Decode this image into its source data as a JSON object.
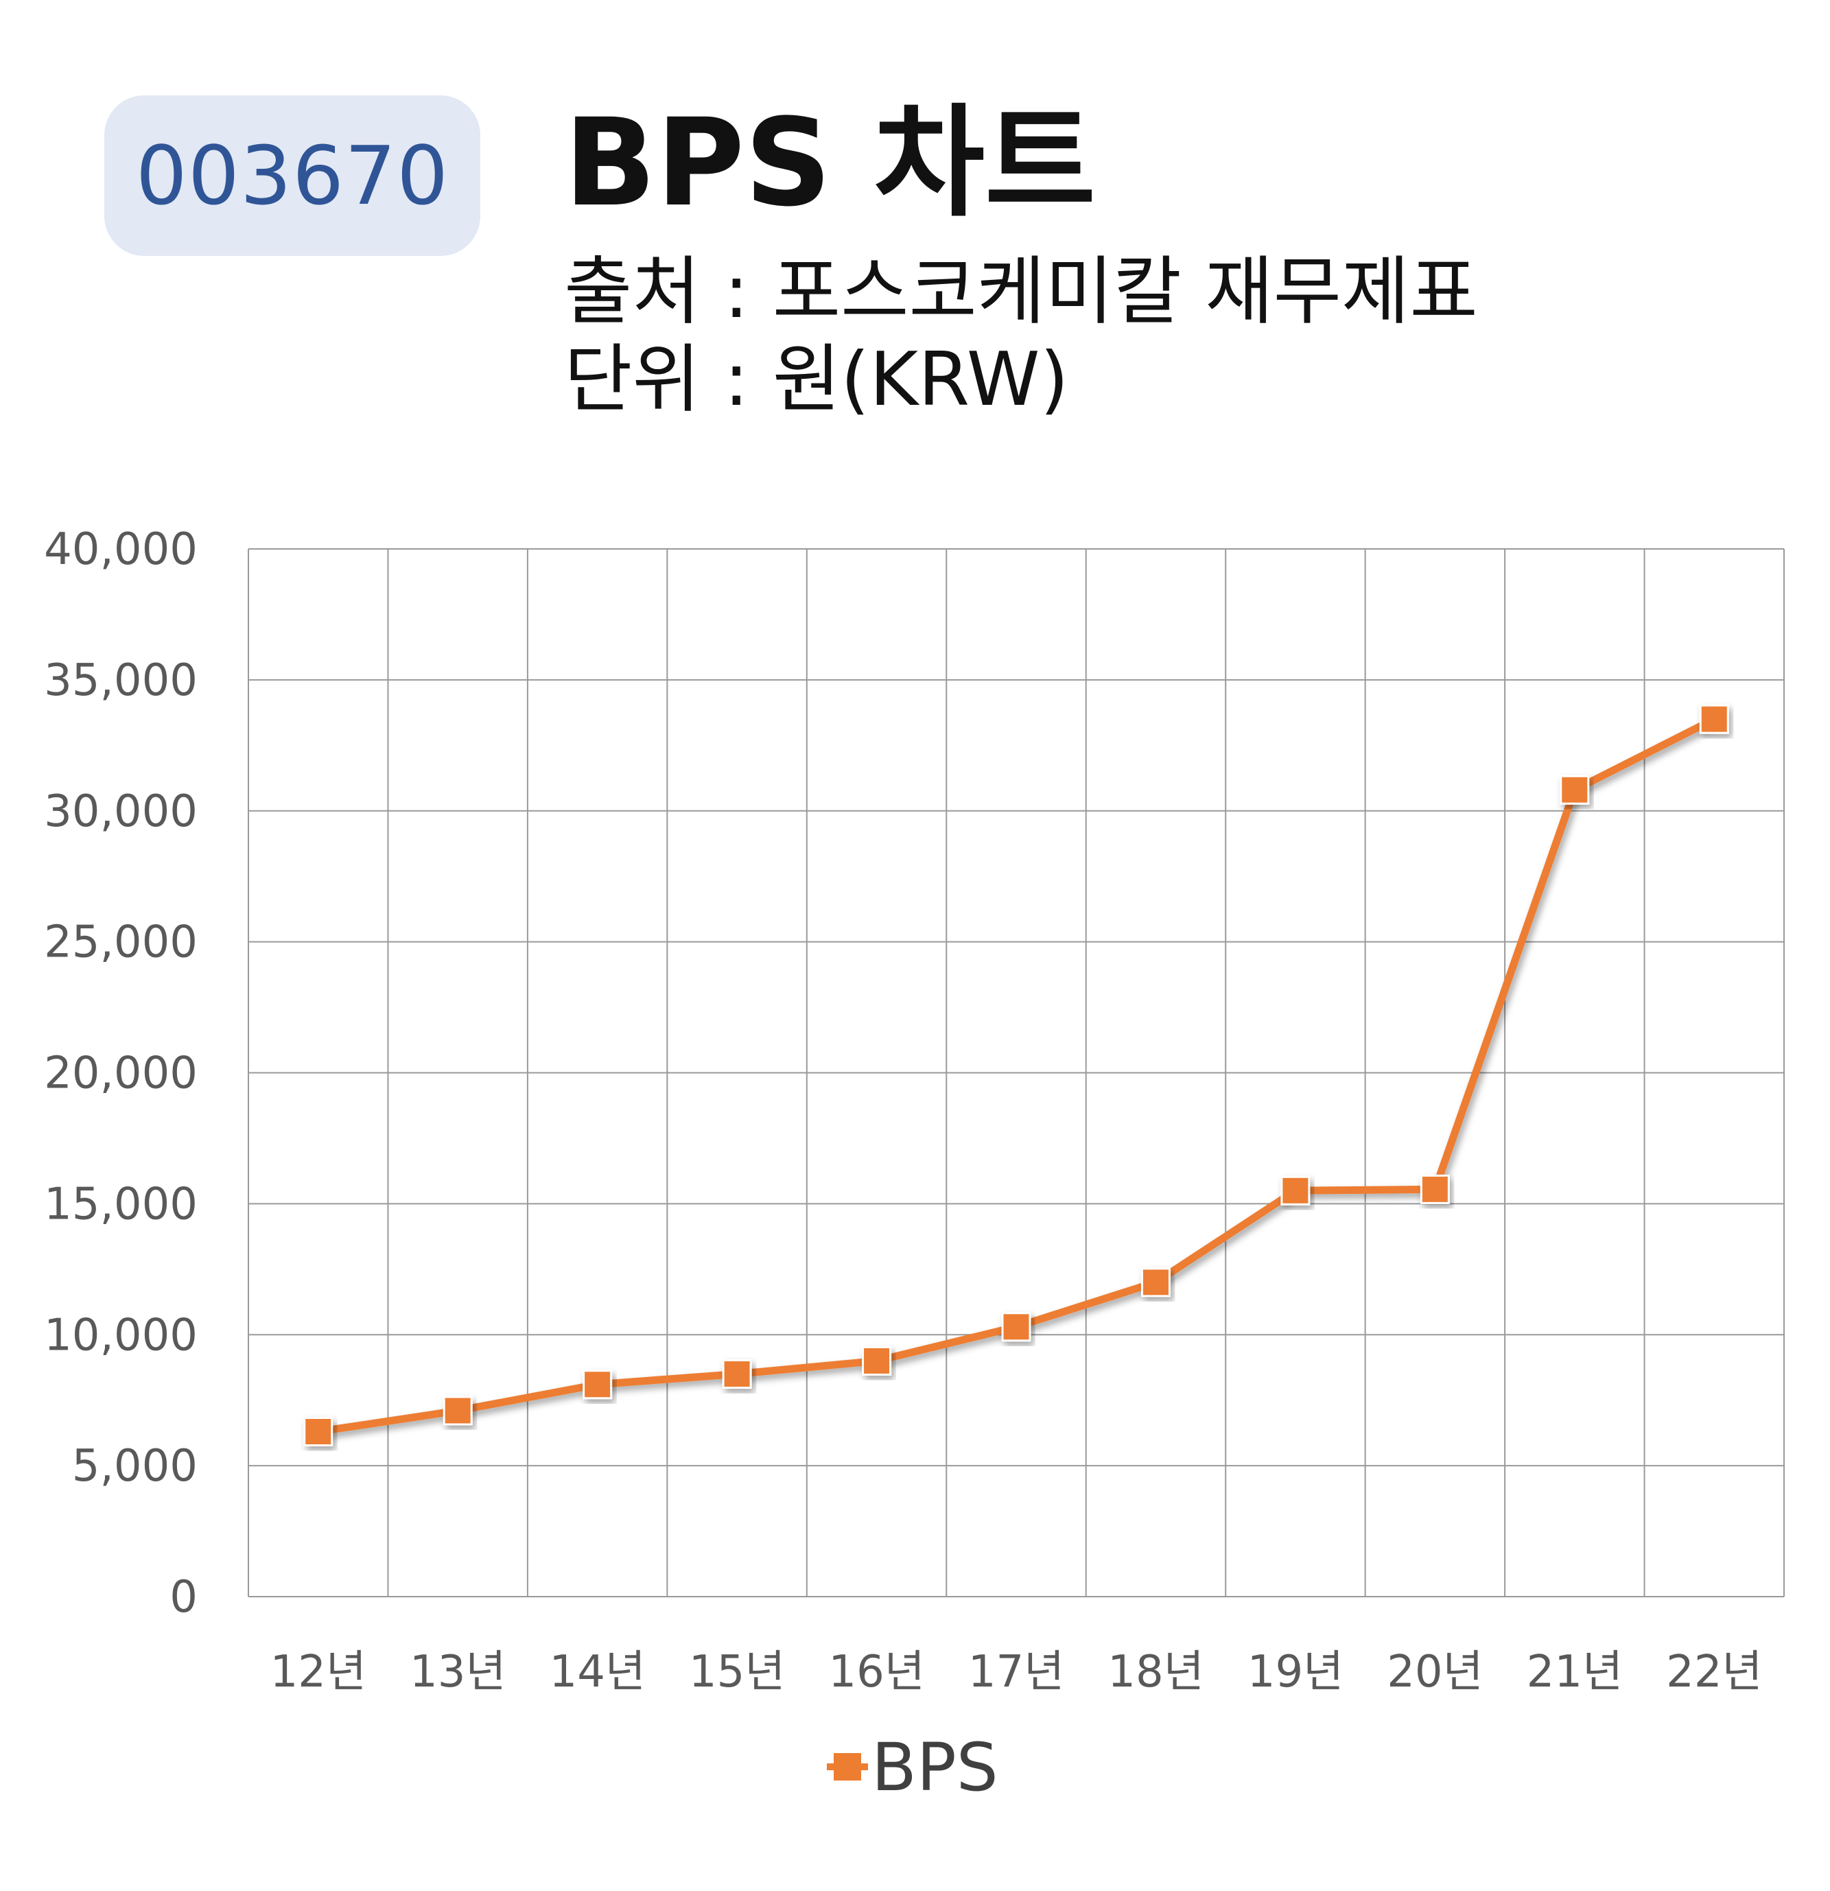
{
  "header": {
    "code_badge": "003670",
    "title": "BPS 차트",
    "source_line": "출처 : 포스코케미칼 재무제표",
    "unit_line": "단위 : 원(KRW)"
  },
  "chart_data": {
    "type": "line",
    "categories": [
      "12년",
      "13년",
      "14년",
      "15년",
      "16년",
      "17년",
      "18년",
      "19년",
      "20년",
      "21년",
      "22년"
    ],
    "series": [
      {
        "name": "BPS",
        "values": [
          6300,
          7100,
          8100,
          8500,
          9000,
          10300,
          12000,
          15500,
          15550,
          30800,
          33500
        ]
      }
    ],
    "ylim": [
      0,
      40000
    ],
    "yticks": [
      0,
      5000,
      10000,
      15000,
      20000,
      25000,
      30000,
      35000,
      40000
    ],
    "ytick_labels": [
      "0",
      "5,000",
      "10,000",
      "15,000",
      "20,000",
      "25,000",
      "30,000",
      "35,000",
      "40,000"
    ],
    "grid": true,
    "legend": "bottom",
    "colors": {
      "line": "#ed7d31",
      "grid": "#9a9a9a",
      "tick_text": "#595959"
    },
    "marker": "square"
  }
}
